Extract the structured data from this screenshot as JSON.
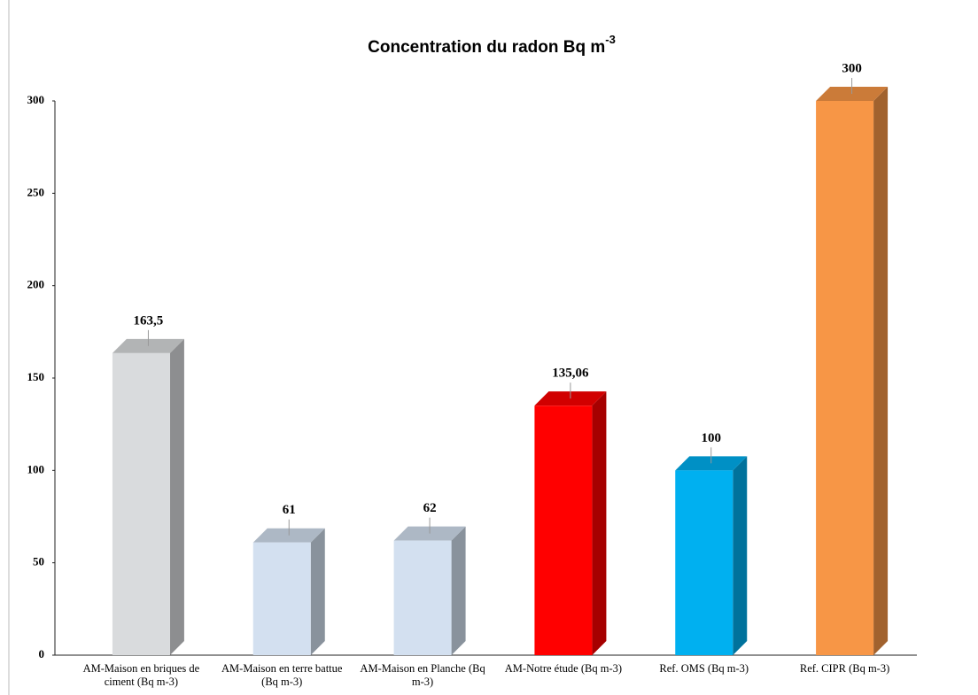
{
  "chart_data": {
    "type": "bar3d",
    "title": "Concentration du radon Bq m",
    "title_superscript": "-3",
    "categories": [
      "AM-Maison en briques de ciment (Bq m-3)",
      "AM-Maison en terre battue (Bq m-3)",
      "AM-Maison en Planche (Bq m-3)",
      "AM-Notre étude (Bq m-3)",
      "Ref. OMS (Bq m-3)",
      "Ref. CIPR (Bq m-3)"
    ],
    "values": [
      163.5,
      61,
      62,
      135.06,
      100,
      300
    ],
    "value_labels": [
      "163,5",
      "61",
      "62",
      "135,06",
      "100",
      "300"
    ],
    "colors": [
      "#d9dbdd",
      "#d3e0f0",
      "#d3e0f0",
      "#ff0000",
      "#00b0f0",
      "#f79646"
    ],
    "ylim": [
      0,
      300
    ],
    "yticks": [
      0,
      50,
      100,
      150,
      200,
      250,
      300
    ],
    "grid": false
  }
}
